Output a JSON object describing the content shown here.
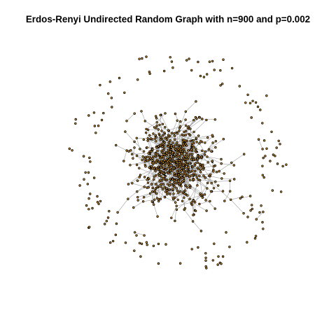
{
  "title": "Erdos-Renyi Undirected Random Graph with n=900 and p=0.002",
  "graph": {
    "model": "Erdos-Renyi",
    "directed": false,
    "n": 900,
    "p": 0.002,
    "colors": {
      "background": "#ffffff",
      "edge": "#9a9a9a",
      "node_fill": "#f5a623",
      "node_stroke": "#000000",
      "title": "#000000"
    }
  }
}
